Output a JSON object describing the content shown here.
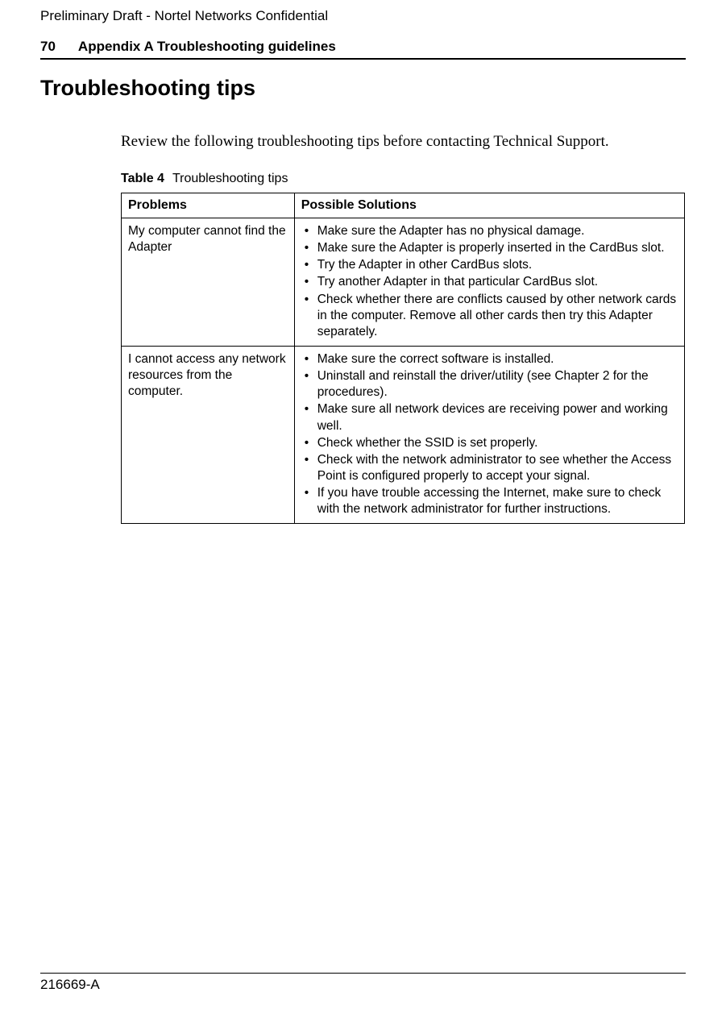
{
  "header": {
    "draft_label": "Preliminary Draft - Nortel Networks Confidential",
    "page_number": "70",
    "section_title": "Appendix A Troubleshooting guidelines"
  },
  "main": {
    "title": "Troubleshooting tips",
    "intro_text": "Review the following troubleshooting tips before contacting Technical Support.",
    "table_caption_num": "Table 4",
    "table_caption_text": "Troubleshooting tips"
  },
  "table": {
    "header_col1": "Problems",
    "header_col2": "Possible Solutions",
    "rows": [
      {
        "problem": "My computer cannot find the Adapter",
        "solutions": [
          "Make sure the Adapter has no physical damage.",
          "Make sure the Adapter is properly inserted in the CardBus slot.",
          "Try the Adapter in other CardBus slots.",
          "Try another Adapter in that particular CardBus slot.",
          "Check whether there are conflicts caused by other network cards in the computer. Remove all other cards then try this Adapter separately."
        ]
      },
      {
        "problem": "I cannot access any network resources from the computer.",
        "solutions": [
          "Make sure the correct software is installed.",
          "Uninstall and reinstall the driver/utility (see Chapter 2 for the procedures).",
          "Make sure all network devices are receiving power and working well.",
          "Check whether the SSID is set properly.",
          "Check with the network administrator to see whether the Access Point is configured properly to accept your signal.",
          "If you have trouble accessing the Internet, make sure to check with the network administrator for further instructions."
        ]
      }
    ]
  },
  "footer": {
    "doc_id": "216669-A"
  },
  "colors": {
    "text": "#000000",
    "background": "#ffffff",
    "border": "#000000"
  }
}
